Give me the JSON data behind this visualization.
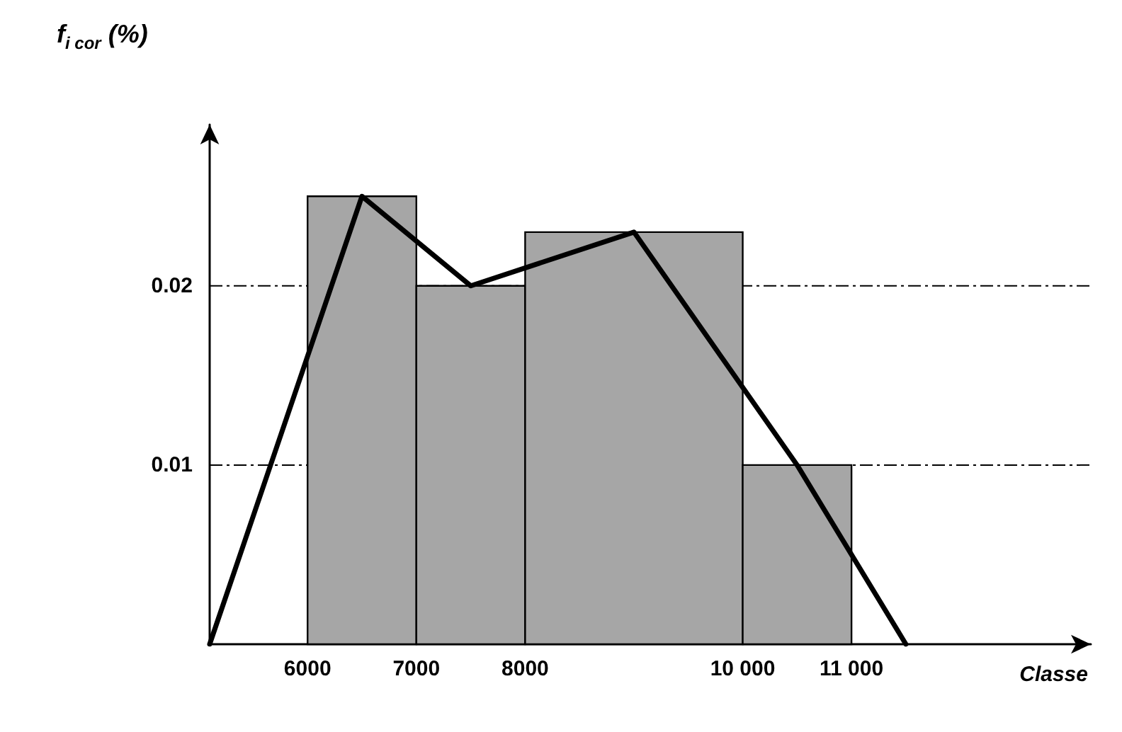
{
  "chart_data": {
    "type": "histogram",
    "ylabel": "f$_{i cor}$ (%)",
    "xlabel": "Classe",
    "bins": [
      6000,
      7000,
      8000,
      10000,
      11000
    ],
    "series": [
      {
        "color": "#a6a6a6",
        "values": [
          0.025,
          0.02,
          0.023,
          0.01
        ]
      },
      {
        "type": "line",
        "color": "#000000",
        "x": [
          5100,
          6500,
          7500,
          9000,
          10500,
          11500
        ],
        "values": [
          0,
          0.025,
          0.02,
          0.023,
          0.01,
          0
        ]
      }
    ],
    "xlim": [
      5100,
      13200
    ],
    "xticks": [
      6000,
      7000,
      8000,
      {
        "value": 10000,
        "label": "10 000"
      },
      {
        "value": 11000,
        "label": "11 000"
      }
    ],
    "ylim": [
      0,
      0.029
    ],
    "yticks": [
      0.01,
      0.02
    ],
    "ref_lines": [
      {
        "axis": "y",
        "value": 0.02,
        "line_style": "dashed",
        "color": "#000000"
      },
      {
        "axis": "y",
        "value": 0.01,
        "line_style": "dashed",
        "color": "#000000"
      }
    ],
    "grid": false,
    "marker": "none"
  }
}
